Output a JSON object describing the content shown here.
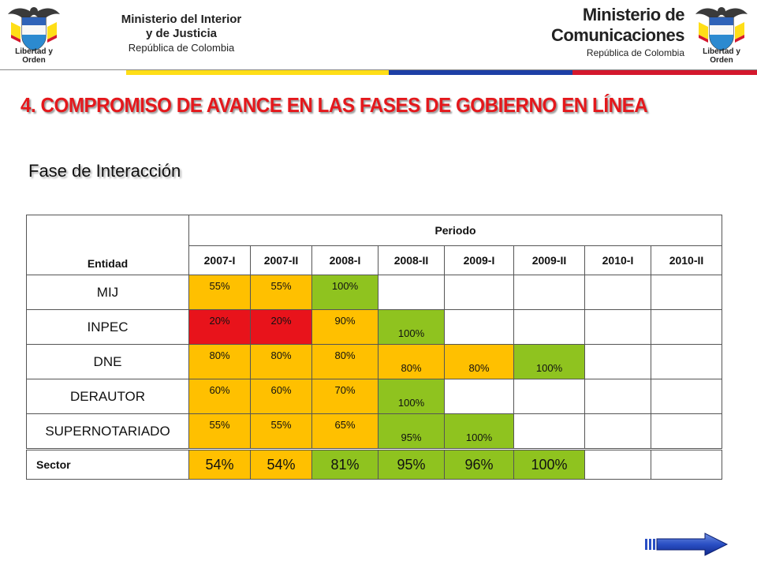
{
  "header": {
    "left": {
      "line1": "Ministerio del Interior",
      "line2": "y de Justicia",
      "line3": "República de Colombia",
      "crest_motto": "Libertad y Orden"
    },
    "right": {
      "line1": "Ministerio de",
      "line2": "Comunicaciones",
      "line3": "República de Colombia",
      "crest_motto": "Libertad y Orden"
    },
    "flag_colors": [
      "#ffffff",
      "#ffde17",
      "#1d3fa6",
      "#d4182d"
    ]
  },
  "title": "4. COMPROMISO DE AVANCE EN LAS FASES DE GOBIERNO EN LÍNEA",
  "subtitle": "Fase de Interacción",
  "colors": {
    "title_red": "#e4181c",
    "red": "#e8131b",
    "yellow": "#ffc000",
    "green": "#8fc31f",
    "white": "#ffffff"
  },
  "table": {
    "entity_header": "Entidad",
    "period_header": "Periodo",
    "periods": [
      "2007-I",
      "2007-II",
      "2008-I",
      "2008-II",
      "2009-I",
      "2009-II",
      "2010-I",
      "2010-II"
    ],
    "rows": [
      {
        "entity": "MIJ",
        "cells": [
          {
            "value": "55%",
            "color": "yellow"
          },
          {
            "value": "55%",
            "color": "yellow"
          },
          {
            "value": "100%",
            "color": "green"
          },
          {
            "value": "",
            "color": "white"
          },
          {
            "value": "",
            "color": "white"
          },
          {
            "value": "",
            "color": "white"
          },
          {
            "value": "",
            "color": "white"
          },
          {
            "value": "",
            "color": "white"
          }
        ]
      },
      {
        "entity": "INPEC",
        "cells": [
          {
            "value": "20%",
            "color": "red"
          },
          {
            "value": "20%",
            "color": "red"
          },
          {
            "value": "90%",
            "color": "yellow"
          },
          {
            "value": "100%",
            "color": "green"
          },
          {
            "value": "",
            "color": "white"
          },
          {
            "value": "",
            "color": "white"
          },
          {
            "value": "",
            "color": "white"
          },
          {
            "value": "",
            "color": "white"
          }
        ]
      },
      {
        "entity": "DNE",
        "cells": [
          {
            "value": "80%",
            "color": "yellow"
          },
          {
            "value": "80%",
            "color": "yellow"
          },
          {
            "value": "80%",
            "color": "yellow"
          },
          {
            "value": "80%",
            "color": "yellow"
          },
          {
            "value": "80%",
            "color": "yellow"
          },
          {
            "value": "100%",
            "color": "green"
          },
          {
            "value": "",
            "color": "white"
          },
          {
            "value": "",
            "color": "white"
          }
        ]
      },
      {
        "entity": "DERAUTOR",
        "cells": [
          {
            "value": "60%",
            "color": "yellow"
          },
          {
            "value": "60%",
            "color": "yellow"
          },
          {
            "value": "70%",
            "color": "yellow"
          },
          {
            "value": "100%",
            "color": "green"
          },
          {
            "value": "",
            "color": "white"
          },
          {
            "value": "",
            "color": "white"
          },
          {
            "value": "",
            "color": "white"
          },
          {
            "value": "",
            "color": "white"
          }
        ]
      },
      {
        "entity": "SUPERNOTARIADO",
        "cells": [
          {
            "value": "55%",
            "color": "yellow"
          },
          {
            "value": "55%",
            "color": "yellow"
          },
          {
            "value": "65%",
            "color": "yellow"
          },
          {
            "value": "95%",
            "color": "green"
          },
          {
            "value": "100%",
            "color": "green"
          },
          {
            "value": "",
            "color": "white"
          },
          {
            "value": "",
            "color": "white"
          },
          {
            "value": "",
            "color": "white"
          }
        ]
      }
    ]
  },
  "sector": {
    "label": "Sector",
    "cells": [
      {
        "value": "54%",
        "color": "yellow"
      },
      {
        "value": "54%",
        "color": "yellow"
      },
      {
        "value": "81%",
        "color": "green"
      },
      {
        "value": "95%",
        "color": "green"
      },
      {
        "value": "96%",
        "color": "green"
      },
      {
        "value": "100%",
        "color": "green"
      },
      {
        "value": "",
        "color": "white"
      },
      {
        "value": "",
        "color": "white"
      }
    ]
  },
  "nav": {
    "next_icon": "next-arrow-icon"
  }
}
